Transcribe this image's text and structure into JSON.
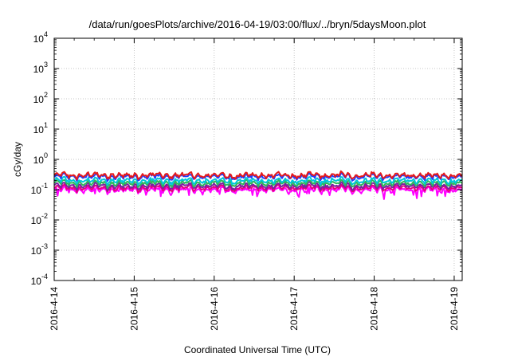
{
  "chart_data": {
    "type": "line",
    "title": "/data/run/goesPlots/archive/2016-04-19/03:00/flux/../bryn/5daysMoon.plot",
    "xlabel": "Coordinated Universal Time (UTC)",
    "ylabel": "cGy/day",
    "yscale": "log",
    "ylim": [
      0.0001,
      10000
    ],
    "xlim": [
      0,
      5.1
    ],
    "grid": true,
    "x_tick_labels": [
      "2016-4-14",
      "2016-4-15",
      "2016-4-16",
      "2016-4-17",
      "2016-4-18",
      "2016-4-19"
    ],
    "y_tick_labels": [
      {
        "base": "10",
        "exp": "-4"
      },
      {
        "base": "10",
        "exp": "-3"
      },
      {
        "base": "10",
        "exp": "-2"
      },
      {
        "base": "10",
        "exp": "-1"
      },
      {
        "base": "10",
        "exp": "0"
      },
      {
        "base": "10",
        "exp": "1"
      },
      {
        "base": "10",
        "exp": "2"
      },
      {
        "base": "10",
        "exp": "3"
      },
      {
        "base": "10",
        "exp": "4"
      }
    ],
    "series_style": [
      {
        "color": "#e41a1c",
        "base": 0.3,
        "spike": 0.1
      },
      {
        "color": "#1f3fff",
        "base": 0.27,
        "spike": 0.1
      },
      {
        "color": "#00c8d8",
        "base": 0.2,
        "spike": 0.09
      },
      {
        "color": "#2fb85a",
        "base": 0.165,
        "spike": 0.08
      },
      {
        "color": "#7b1fa2",
        "base": 0.135,
        "spike": 0.07
      },
      {
        "color": "#e6007e",
        "base": 0.115,
        "spike": 0.06
      },
      {
        "color": "#ff00ff",
        "base": 0.1,
        "spike": 0.55
      }
    ]
  }
}
